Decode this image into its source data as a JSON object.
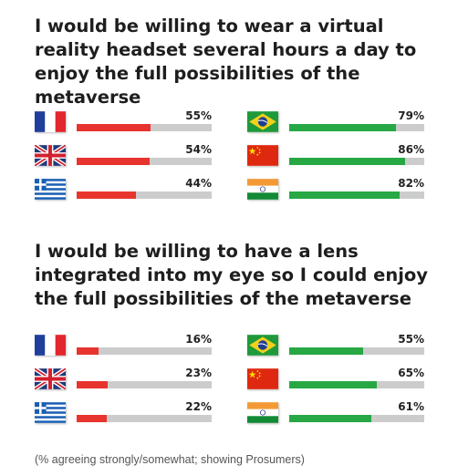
{
  "chart_data": [
    {
      "type": "bar",
      "title": "I would be willing to wear a virtual reality headset several hours a day to enjoy the full possibilities of the metaverse",
      "categories": [
        "France",
        "United Kingdom",
        "Greece",
        "Brazil",
        "China",
        "India"
      ],
      "values": [
        55,
        54,
        44,
        79,
        86,
        82
      ],
      "value_labels": [
        "55%",
        "54%",
        "44%",
        "79%",
        "86%",
        "82%"
      ],
      "ylim": [
        0,
        100
      ],
      "colors": {
        "europe": "#e8342e",
        "emerging": "#27a844",
        "track": "#cccccc"
      }
    },
    {
      "type": "bar",
      "title": "I would be willing to have a lens integrated into my eye so I could enjoy the full possibilities of the metaverse",
      "categories": [
        "France",
        "United Kingdom",
        "Greece",
        "Brazil",
        "China",
        "India"
      ],
      "values": [
        16,
        23,
        22,
        55,
        65,
        61
      ],
      "value_labels": [
        "16%",
        "23%",
        "22%",
        "55%",
        "65%",
        "61%"
      ],
      "ylim": [
        0,
        100
      ],
      "colors": {
        "europe": "#e8342e",
        "emerging": "#27a844",
        "track": "#cccccc"
      }
    }
  ],
  "footnote": "(% agreeing strongly/somewhat; showing Prosumers)",
  "flags": [
    "france-flag",
    "uk-flag",
    "greece-flag",
    "brazil-flag",
    "china-flag",
    "india-flag"
  ]
}
